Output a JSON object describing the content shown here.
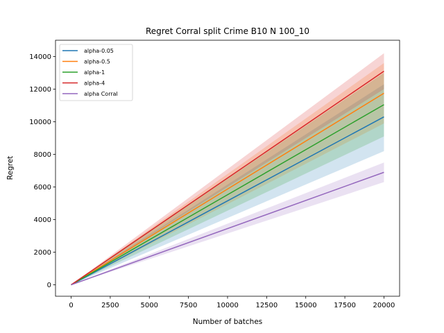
{
  "chart_data": {
    "type": "line",
    "title": "Regret Corral split Crime B10 N 100_10",
    "xlabel": "Number of batches",
    "ylabel": "Regret",
    "xlim": [
      -1000,
      21000
    ],
    "ylim": [
      -700,
      15000
    ],
    "xticks": [
      0,
      2500,
      5000,
      7500,
      10000,
      12500,
      15000,
      17500,
      20000
    ],
    "yticks": [
      0,
      2000,
      4000,
      6000,
      8000,
      10000,
      12000,
      14000
    ],
    "grid": false,
    "legend_position": "top-left",
    "x": [
      0,
      20000
    ],
    "series": [
      {
        "name": "alpha-0.05",
        "color": "#1f77b4",
        "values": [
          0,
          10300
        ],
        "lower": [
          0,
          8200
        ],
        "upper": [
          0,
          12300
        ]
      },
      {
        "name": "alpha-0.5",
        "color": "#ff7f0e",
        "values": [
          0,
          11750
        ],
        "lower": [
          0,
          9900
        ],
        "upper": [
          0,
          13600
        ]
      },
      {
        "name": "alpha-1",
        "color": "#2ca02c",
        "values": [
          0,
          11050
        ],
        "lower": [
          0,
          9100
        ],
        "upper": [
          0,
          13000
        ]
      },
      {
        "name": "alpha-4",
        "color": "#d62728",
        "values": [
          0,
          13100
        ],
        "lower": [
          0,
          12000
        ],
        "upper": [
          0,
          14200
        ]
      },
      {
        "name": "alpha Corral",
        "color": "#9467bd",
        "values": [
          0,
          6900
        ],
        "lower": [
          0,
          6300
        ],
        "upper": [
          0,
          7500
        ]
      }
    ]
  }
}
